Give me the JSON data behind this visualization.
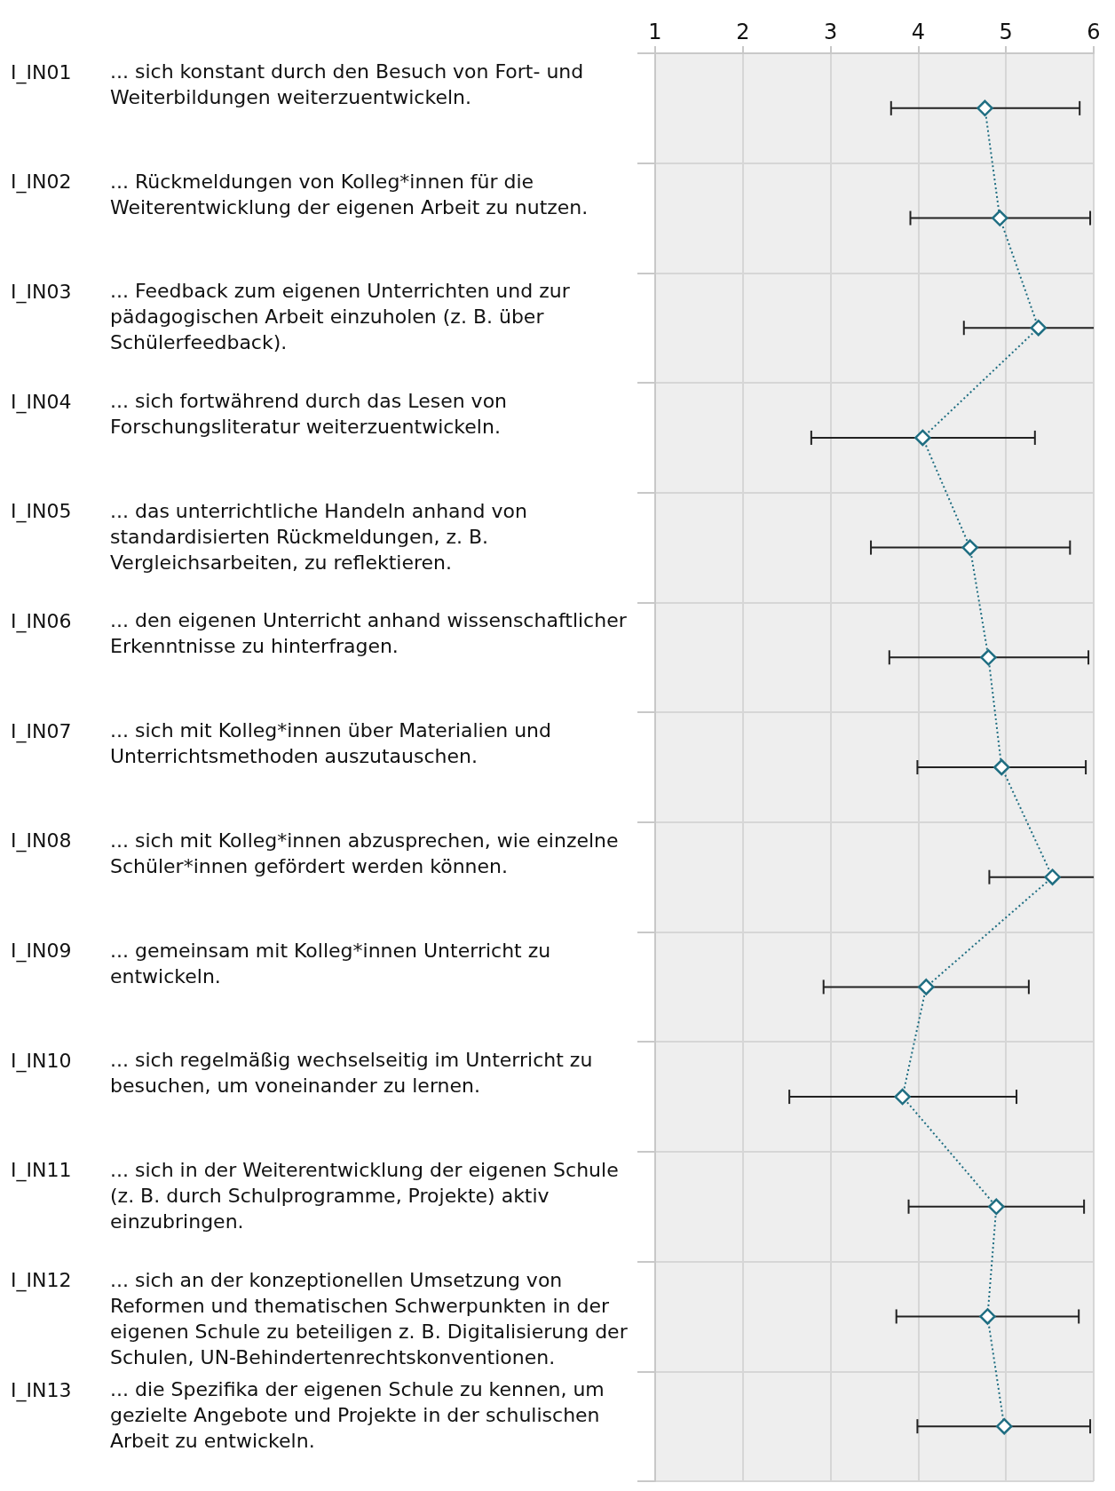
{
  "chart_data": {
    "type": "line",
    "orientation": "horizontal",
    "categories": [
      "I_IN01 ... sich konstant durch den Besuch von Fort- und Weiterbildungen weiterzuentwickeln.",
      "I_IN02 ... Rückmeldungen von Kolleg*innen für die Weiterentwicklung der eigenen Arbeit zu nutzen.",
      "I_IN03 ... Feedback zum eigenen Unterrichten und zur pädagogischen Arbeit einzuholen (z. B. über Schülerfeedback).",
      "I_IN04 ... sich fortwährend durch das Lesen von Forschungsliteratur weiterzuentwickeln.",
      "I_IN05 ... das unterrichtliche Handeln anhand von standardisierten Rückmeldungen, z. B. Vergleichsarbeiten, zu reflektieren.",
      "I_IN06 ... den eigenen Unterricht anhand wissenschaftlicher Erkenntnisse zu hinterfragen.",
      "I_IN07 ... sich mit Kolleg*innen über Materialien und Unterrichtsmethoden auszutauschen.",
      "I_IN08 ... sich mit Kolleg*innen abzusprechen, wie einzelne Schüler*innen gefördert werden können.",
      "I_IN09 ... gemeinsam mit Kolleg*innen Unterricht zu entwickeln.",
      "I_IN10 ... sich regelmäßig wechselseitig im Unterricht zu besuchen, um voneinander zu lernen.",
      "I_IN11 ... sich in der Weiterentwicklung der eigenen Schule (z. B. durch Schulprogramme, Projekte) aktiv einzubringen.",
      "I_IN12 ... sich an der konzeptionellen Umsetzung von Reformen und thematischen Schwerpunkten in der eigenen Schule zu beteiligen z. B. Digitalisierung der Schulen, UN-Behindertenrechtskonventionen.",
      "I_IN13 ... die Spezifika der eigenen Schule zu kennen, um gezielte Angebote und Projekte in der schulischen Arbeit zu entwickeln."
    ],
    "values": [
      4.76,
      4.93,
      5.37,
      4.05,
      4.59,
      4.8,
      4.95,
      5.53,
      4.09,
      3.82,
      4.89,
      4.79,
      4.98
    ],
    "errors": [
      [
        3.69,
        5.84
      ],
      [
        3.91,
        5.96
      ],
      [
        4.52,
        6
      ],
      [
        2.78,
        5.33
      ],
      [
        3.46,
        5.73
      ],
      [
        3.67,
        5.94
      ],
      [
        3.99,
        5.91
      ],
      [
        4.81,
        6
      ],
      [
        2.92,
        5.26
      ],
      [
        2.53,
        5.12
      ],
      [
        3.89,
        5.89
      ],
      [
        3.75,
        5.83
      ],
      [
        3.99,
        5.96
      ]
    ],
    "color": "#1f6e82",
    "xlim": [
      1,
      6
    ],
    "xticks": [
      1,
      2,
      3,
      4,
      5,
      6
    ],
    "grid": true,
    "marker": "diamond",
    "line_style": "dotted"
  }
}
